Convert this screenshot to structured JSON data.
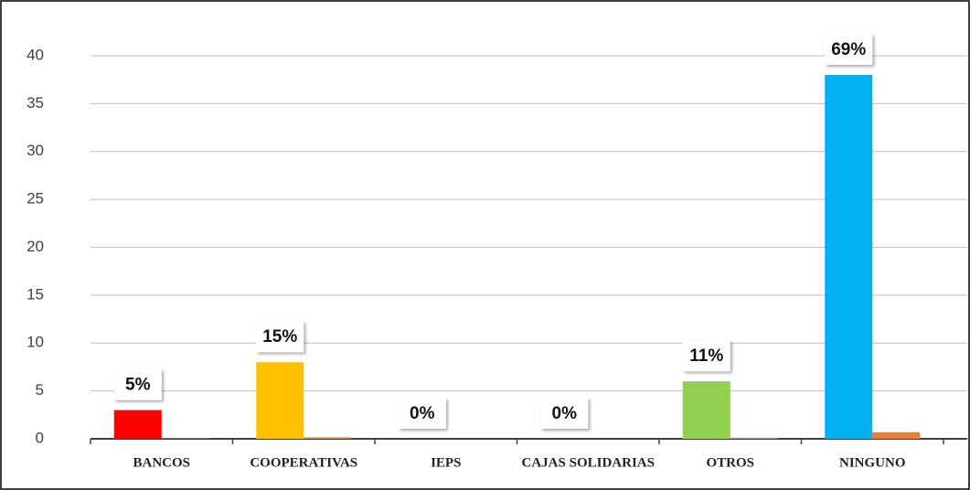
{
  "chart_data": {
    "type": "bar",
    "categories": [
      "BANCOS",
      "COOPERATIVAS",
      "IEPS",
      "CAJAS SOLIDARIAS",
      "OTROS",
      "NINGUNO"
    ],
    "series": [
      {
        "color": "#ff0000",
        "colors": [
          "#ff0000",
          "#ffc000",
          "#a5a5a5",
          "#4472c4",
          "#92d050",
          "#00b0f0"
        ],
        "values": [
          3,
          8,
          0,
          0,
          6,
          38
        ]
      },
      {
        "color": "#ed7d31",
        "values": [
          0.05,
          0.15,
          0,
          0,
          0.11,
          0.69
        ],
        "value_labels": [
          "5%",
          "15%",
          "0%",
          "0%",
          "11%",
          "69%"
        ]
      }
    ],
    "ylim": [
      0,
      40
    ],
    "yticks": [
      0,
      5,
      10,
      15,
      20,
      25,
      30,
      35,
      40
    ],
    "grid": true
  }
}
